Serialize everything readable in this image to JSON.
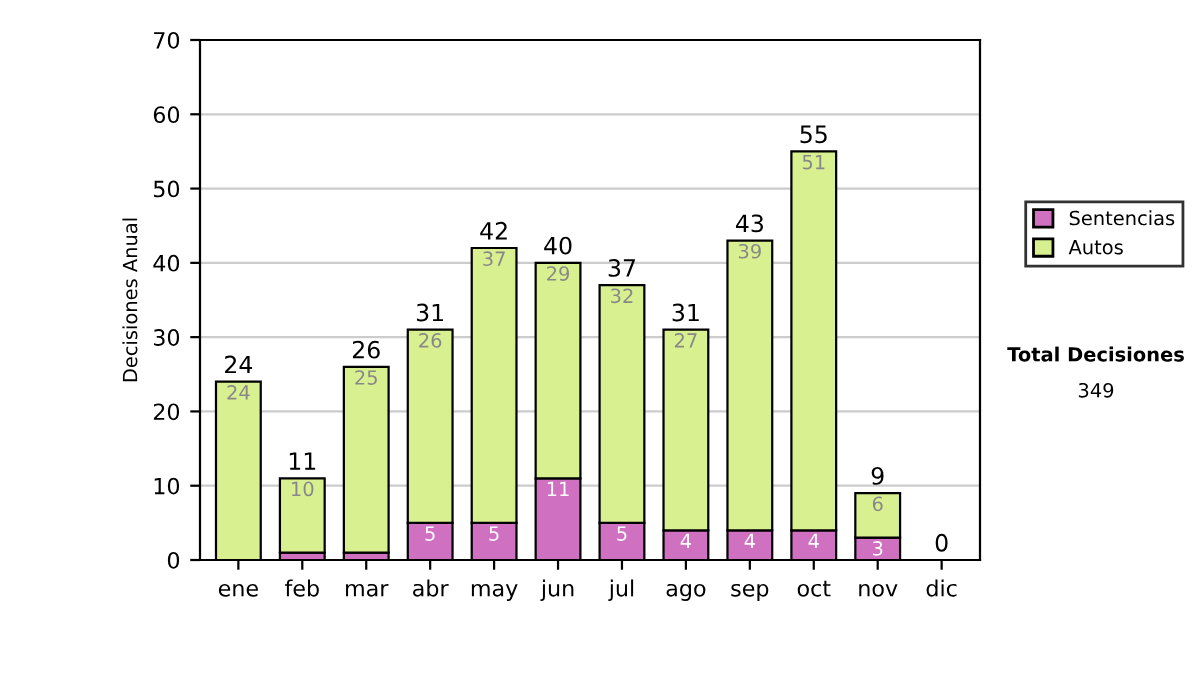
{
  "chart_data": {
    "type": "bar",
    "stacked": true,
    "ylabel": "Decisiones Anual",
    "categories": [
      "ene",
      "feb",
      "mar",
      "abr",
      "may",
      "jun",
      "jul",
      "ago",
      "sep",
      "oct",
      "nov",
      "dic"
    ],
    "series": [
      {
        "name": "Sentencias",
        "color": "#d070c0",
        "values": [
          0,
          1,
          1,
          5,
          5,
          11,
          5,
          4,
          4,
          4,
          3,
          0
        ],
        "value_labels": [
          null,
          null,
          null,
          "5",
          "5",
          "11",
          "5",
          "4",
          "4",
          "4",
          "3",
          null
        ]
      },
      {
        "name": "Autos",
        "color": "#d8f090",
        "values": [
          24,
          10,
          25,
          26,
          37,
          29,
          32,
          27,
          39,
          51,
          6,
          0
        ],
        "value_labels": [
          "24",
          "10",
          "25",
          "26",
          "37",
          "29",
          "32",
          "27",
          "39",
          "51",
          "6",
          null
        ]
      }
    ],
    "totals": [
      "24",
      "11",
      "26",
      "31",
      "42",
      "40",
      "37",
      "31",
      "43",
      "55",
      "9",
      "0"
    ],
    "ylim": [
      0,
      70
    ],
    "yticks": [
      0,
      10,
      20,
      30,
      40,
      50,
      60,
      70
    ],
    "grid": "y",
    "legend": "right",
    "annotations": [
      "Total Decisiones",
      "349"
    ]
  }
}
